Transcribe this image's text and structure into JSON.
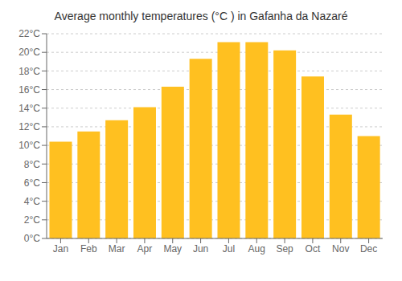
{
  "chart_data": {
    "type": "bar",
    "title": "Average monthly temperatures (°C ) in Gafanha da Nazaré",
    "categories": [
      "Jan",
      "Feb",
      "Mar",
      "Apr",
      "May",
      "Jun",
      "Jul",
      "Aug",
      "Sep",
      "Oct",
      "Nov",
      "Dec"
    ],
    "values": [
      10.4,
      11.5,
      12.7,
      14.1,
      16.3,
      19.3,
      21.1,
      21.1,
      20.2,
      17.4,
      13.3,
      11.0
    ],
    "color": "#FFC020",
    "ylim": [
      0,
      22
    ],
    "yticks": [
      {
        "value": 0,
        "label": "0°C"
      },
      {
        "value": 2,
        "label": "2°C"
      },
      {
        "value": 4,
        "label": "4°C"
      },
      {
        "value": 6,
        "label": "6°C"
      },
      {
        "value": 8,
        "label": "8°C"
      },
      {
        "value": 10,
        "label": "10°C"
      },
      {
        "value": 12,
        "label": "12°C"
      },
      {
        "value": 14,
        "label": "14°C"
      },
      {
        "value": 16,
        "label": "16°C"
      },
      {
        "value": 18,
        "label": "18°C"
      },
      {
        "value": 20,
        "label": "20°C"
      },
      {
        "value": 22,
        "label": "22°C"
      }
    ],
    "grid": true
  }
}
